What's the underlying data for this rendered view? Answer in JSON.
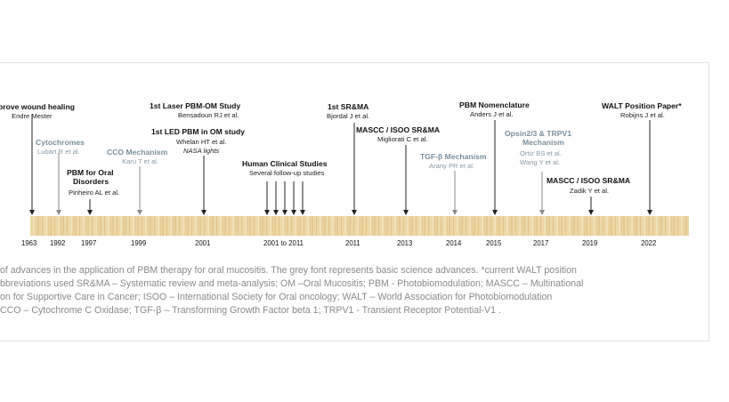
{
  "milestones": [
    {
      "title": "prove wound healing",
      "sub": "Endre Mester",
      "kind": "clinical"
    },
    {
      "title": "Cytochromes",
      "sub": "Lubart R et al.",
      "kind": "basic"
    },
    {
      "title": "PBM for Oral",
      "title2": "Disorders",
      "sub": "Pinheiro AL et al.",
      "kind": "clinical"
    },
    {
      "title": "CCO Mechanism",
      "sub": "Karu T et al.",
      "kind": "basic"
    },
    {
      "title": "1st Laser PBM-OM Study",
      "sub": "Bensadoun RJ et al.",
      "kind": "clinical"
    },
    {
      "title": "1st LED PBM in OM study",
      "sub": "Whelan HT et al.",
      "sub2": "NASA lights",
      "kind": "clinical"
    },
    {
      "title": "Human Clinical  Studies",
      "sub": "Several follow-up studies",
      "kind": "clinical"
    },
    {
      "title": "1st SR&MA",
      "sub": "Bjordal J et al.",
      "kind": "clinical"
    },
    {
      "title": "MASCC / ISOO SR&MA",
      "sub": "Migliorati C et al.",
      "kind": "clinical"
    },
    {
      "title": "TGF-β Mechanism",
      "sub": "Arany PR et al.",
      "kind": "basic"
    },
    {
      "title": "PBM Nomenclature",
      "sub": "Anders J et al.",
      "kind": "clinical"
    },
    {
      "title": "Opsin2/3 & TRPV1",
      "title2": "Mechanism",
      "sub": "Ortiz BS et al.",
      "sub2": "Wang Y et al.",
      "kind": "basic"
    },
    {
      "title": "MASCC / ISOO SR&MA",
      "sub": "Zadik Y et al.",
      "kind": "clinical"
    },
    {
      "title": "WALT Position Paper*",
      "sub": "Robijns J et al.",
      "kind": "clinical"
    }
  ],
  "years": [
    "1963",
    "1992",
    "1997",
    "1999",
    "2001",
    "2001 to 2011",
    "2011",
    "2013",
    "2014",
    "2015",
    "2017",
    "2019",
    "2022"
  ],
  "caption": [
    "of advances in the application of PBM therapy for oral mucositis. The grey font represents basic science advances. *current WALT position",
    "bbreviations used SR&MA – Systematic review and meta-analysis; OM –Oral Mucositis; PBM - Photobiomodulation; MASCC – Multinational",
    "on for Supportive Care in Cancer; ISOO – International Society for Oral oncology; WALT – World Association for Photobiomodulation",
    "CCO – Cytochrome C Oxidase; TGF-β – Transforming Growth Factor beta 1; TRPV1 - Transient Receptor Potential-V1 ."
  ],
  "colors": {
    "bar_light": "#ecd7a6",
    "bar_dark": "#d9b877",
    "clinical_arrow": "#222222",
    "basic_arrow": "#8a8a8a",
    "basic_text": "#7a8f9c"
  }
}
